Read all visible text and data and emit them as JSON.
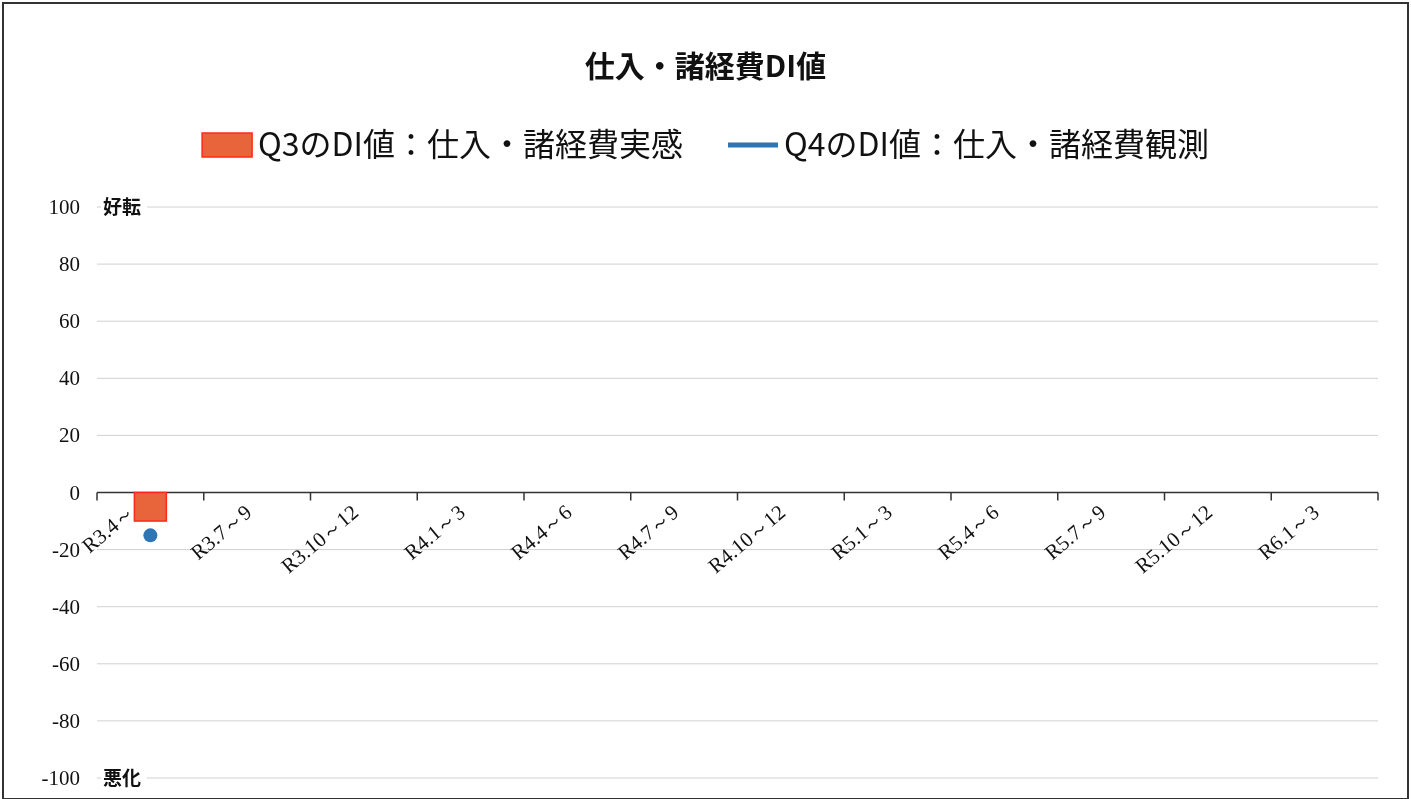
{
  "chart_data": {
    "type": "bar",
    "title": "仕入・諸経費DI値",
    "categories": [
      "R3.4～",
      "R3.7～9",
      "R3.10～12",
      "R4.1～3",
      "R4.4～6",
      "R4.7～9",
      "R4.10～12",
      "R5.1～3",
      "R5.4～6",
      "R5.7～9",
      "R5.10～12",
      "R6.1～3"
    ],
    "series": [
      {
        "name": "Q3のDI値：仕入・諸経費実感",
        "color": "#e8643a",
        "values": [
          -10,
          null,
          null,
          null,
          null,
          null,
          null,
          null,
          null,
          null,
          null,
          null
        ]
      },
      {
        "name": "Q4のDI値：仕入・諸経費観測",
        "type": "line",
        "color": "#2e75b6",
        "values": [
          -15,
          null,
          null,
          null,
          null,
          null,
          null,
          null,
          null,
          null,
          null,
          null
        ]
      }
    ],
    "ylim": [
      -100,
      100
    ],
    "yticks": [
      -100,
      -80,
      -60,
      -40,
      -20,
      0,
      20,
      40,
      60,
      80,
      100
    ],
    "annotations": [
      "好転",
      "悪化"
    ],
    "grid": "y",
    "legend": "top",
    "marker": "circle"
  }
}
